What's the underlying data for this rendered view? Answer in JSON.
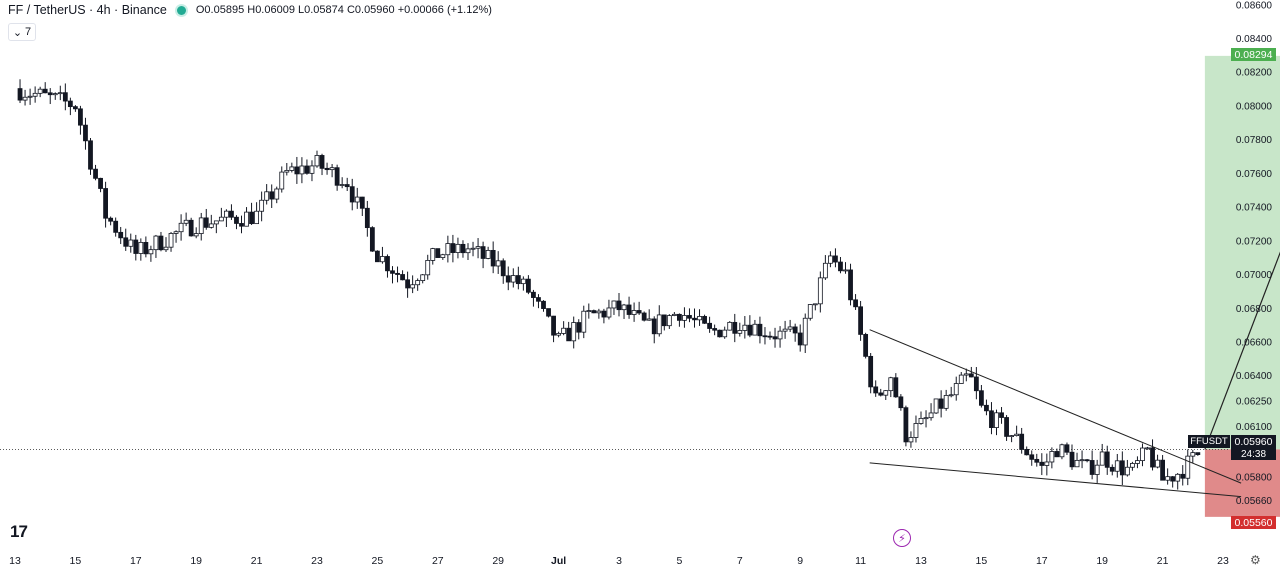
{
  "header": {
    "symbol": "FF / TetherUS · 4h · Binance",
    "ohlc": "O0.05895 H0.06009 L0.05874 C0.05960 +0.00066 (+1.12%)",
    "collapse_label": "7"
  },
  "logo": "17",
  "right_axis": {
    "ticks": [
      "0.08600",
      "0.08400",
      "0.08200",
      "0.08000",
      "0.07800",
      "0.07600",
      "0.07400",
      "0.07200",
      "0.07000",
      "0.06800",
      "0.06600",
      "0.06400",
      "0.06250",
      "0.06100",
      "0.05800",
      "0.05660"
    ],
    "tags": {
      "target": "0.08294",
      "current": "0.05960",
      "stop": "0.05560",
      "symbol": "FFUSDT",
      "timer": "24:38"
    }
  },
  "x_axis": {
    "ticks": [
      "13",
      "15",
      "17",
      "19",
      "21",
      "23",
      "25",
      "27",
      "29",
      "Jul",
      "3",
      "5",
      "7",
      "9",
      "11",
      "13",
      "15",
      "17",
      "19",
      "21",
      "23"
    ]
  },
  "colors": {
    "candle": "#131722",
    "profit_zone": "#c8e6c9",
    "loss_zone": "#e08a8a",
    "target_tag": "#4caf50",
    "stop_tag": "#d32f2f"
  },
  "chart_data": {
    "type": "candlestick",
    "title": "FF / TetherUS · 4h · Binance",
    "ylim": [
      0.0552,
      0.0866
    ],
    "x_ticks": [
      "13",
      "15",
      "17",
      "19",
      "21",
      "23",
      "25",
      "27",
      "29",
      "Jul",
      "3",
      "5",
      "7",
      "9",
      "11",
      "13",
      "15",
      "17",
      "19",
      "21",
      "23"
    ],
    "close_series": [
      {
        "t": 0,
        "close": 0.081
      },
      {
        "t": 2,
        "close": 0.08
      },
      {
        "t": 3,
        "close": 0.0735
      },
      {
        "t": 4,
        "close": 0.0712
      },
      {
        "t": 6,
        "close": 0.073
      },
      {
        "t": 8,
        "close": 0.0735
      },
      {
        "t": 9,
        "close": 0.076
      },
      {
        "t": 10,
        "close": 0.0765
      },
      {
        "t": 11,
        "close": 0.0755
      },
      {
        "t": 12,
        "close": 0.0712
      },
      {
        "t": 13,
        "close": 0.0695
      },
      {
        "t": 14,
        "close": 0.0712
      },
      {
        "t": 15,
        "close": 0.0715
      },
      {
        "t": 16,
        "close": 0.0705
      },
      {
        "t": 17,
        "close": 0.069
      },
      {
        "t": 18,
        "close": 0.066
      },
      {
        "t": 19,
        "close": 0.0675
      },
      {
        "t": 20,
        "close": 0.068
      },
      {
        "t": 21,
        "close": 0.0668
      },
      {
        "t": 22,
        "close": 0.0678
      },
      {
        "t": 23,
        "close": 0.0665
      },
      {
        "t": 24,
        "close": 0.0672
      },
      {
        "t": 25,
        "close": 0.0665
      },
      {
        "t": 26,
        "close": 0.0662
      },
      {
        "t": 27,
        "close": 0.071
      },
      {
        "t": 27.5,
        "close": 0.07
      },
      {
        "t": 28,
        "close": 0.0663
      },
      {
        "t": 28.5,
        "close": 0.0625
      },
      {
        "t": 29,
        "close": 0.064
      },
      {
        "t": 29.5,
        "close": 0.0605
      },
      {
        "t": 30,
        "close": 0.061
      },
      {
        "t": 30.5,
        "close": 0.062
      },
      {
        "t": 31,
        "close": 0.0628
      },
      {
        "t": 31.6,
        "close": 0.064
      },
      {
        "t": 32,
        "close": 0.062
      },
      {
        "t": 32.5,
        "close": 0.0612
      },
      {
        "t": 33,
        "close": 0.0605
      },
      {
        "t": 33.5,
        "close": 0.0595
      },
      {
        "t": 34,
        "close": 0.0585
      },
      {
        "t": 34.5,
        "close": 0.0597
      },
      {
        "t": 35,
        "close": 0.059
      },
      {
        "t": 35.5,
        "close": 0.0584
      },
      {
        "t": 36,
        "close": 0.0592
      },
      {
        "t": 36.5,
        "close": 0.0586
      },
      {
        "t": 37,
        "close": 0.0583
      },
      {
        "t": 37.5,
        "close": 0.0595
      },
      {
        "t": 38,
        "close": 0.0578
      },
      {
        "t": 38.5,
        "close": 0.0582
      },
      {
        "t": 39,
        "close": 0.059
      },
      {
        "t": 39.3,
        "close": 0.0596
      }
    ],
    "drawings": {
      "falling_wedge_upper": [
        [
          28.3,
          0.0667
        ],
        [
          40.6,
          0.0576
        ]
      ],
      "falling_wedge_lower": [
        [
          28.3,
          0.0588
        ],
        [
          40.6,
          0.0568
        ]
      ],
      "target_arrow": [
        [
          39.4,
          0.0596
        ],
        [
          44.4,
          0.083
        ]
      ],
      "long_position": {
        "entry": 0.0596,
        "target": 0.08294,
        "stop": 0.0556,
        "from_t": 39.4,
        "to_t": 44.6
      }
    }
  }
}
